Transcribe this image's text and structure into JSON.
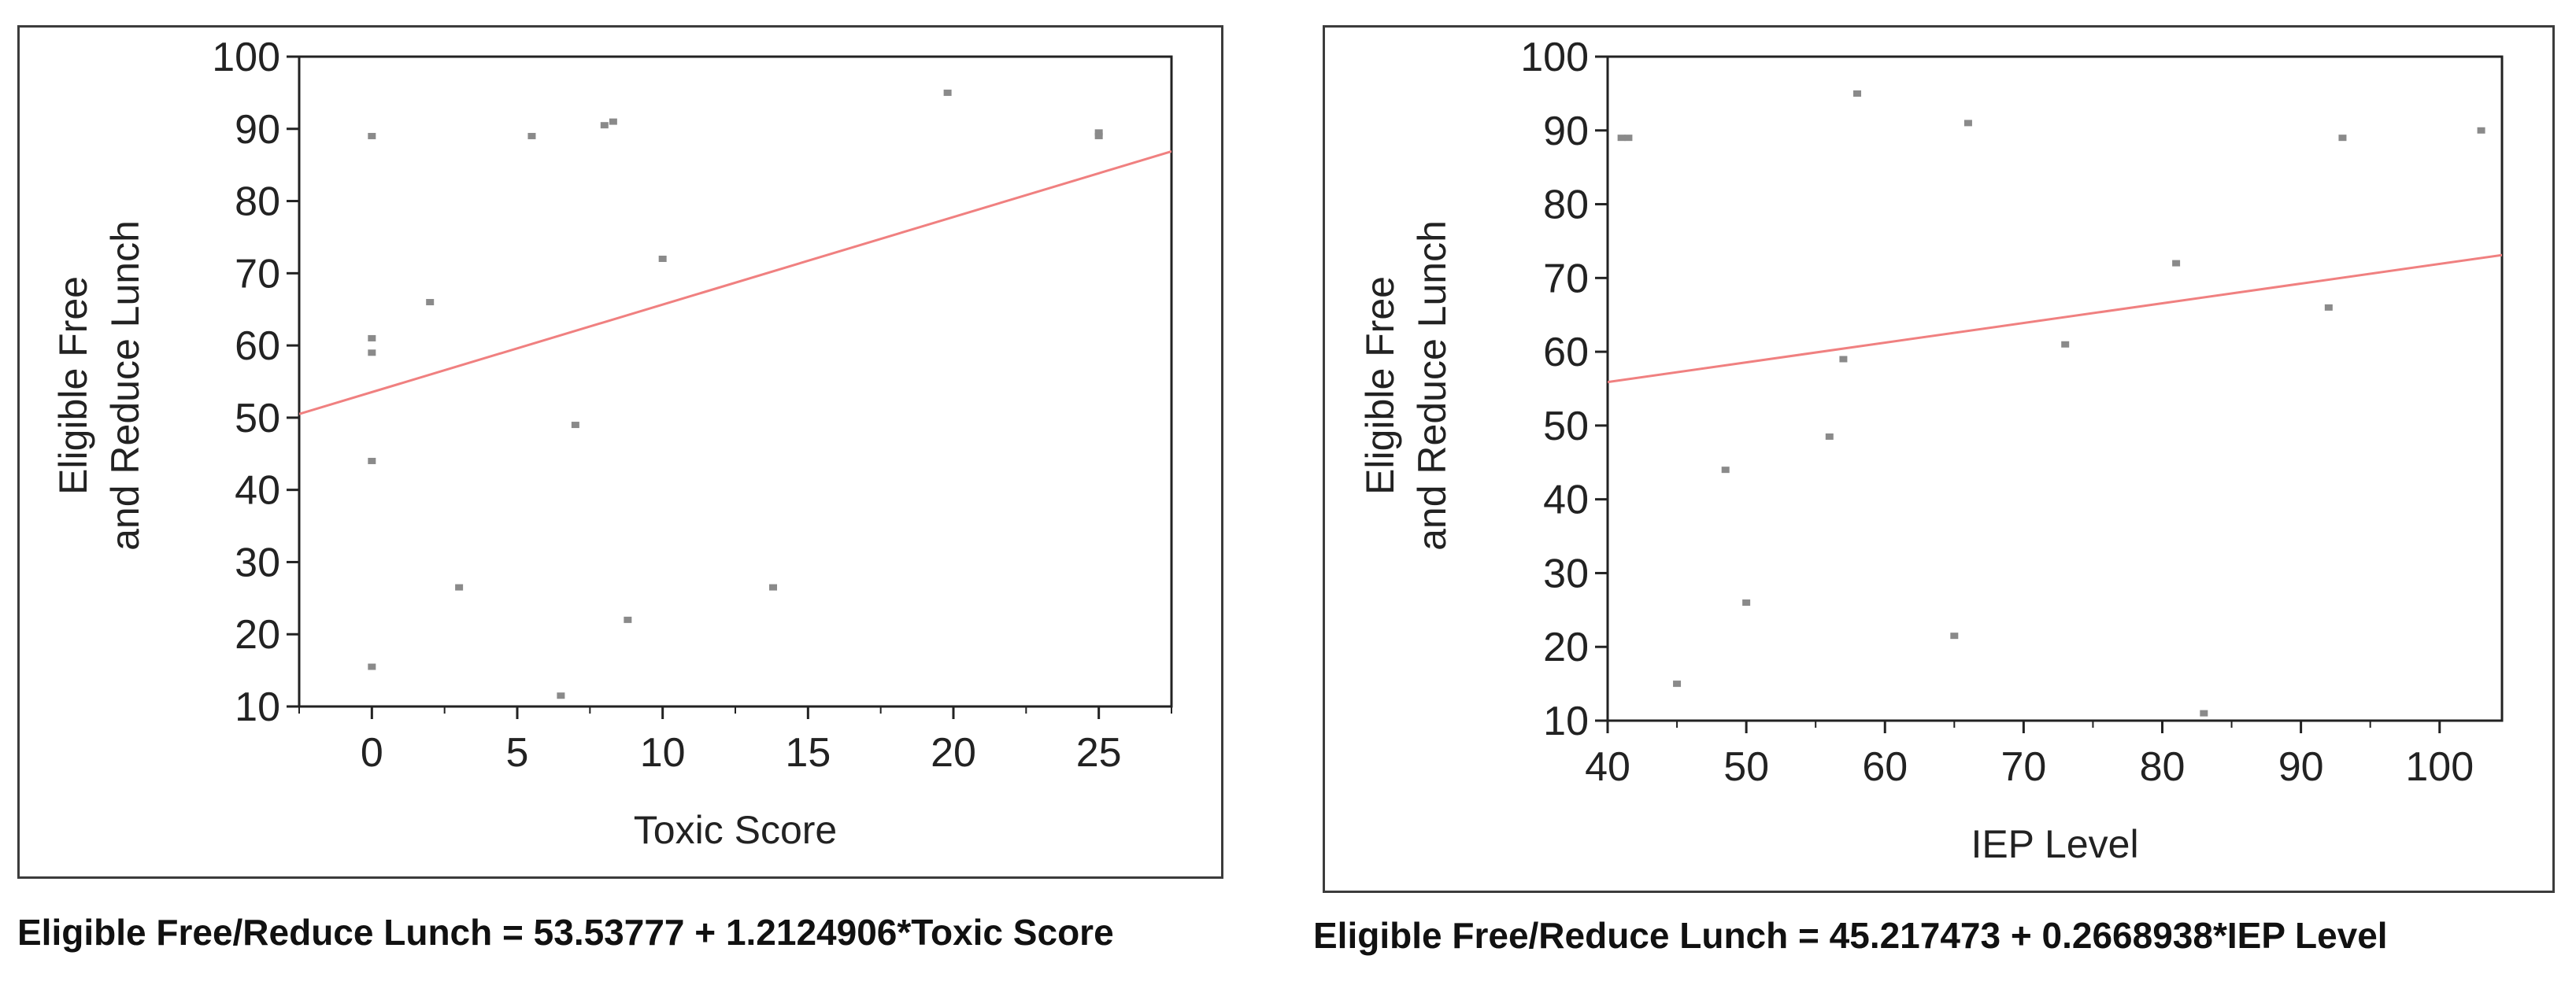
{
  "chart_data": [
    {
      "type": "scatter",
      "xlabel": "Toxic Score",
      "ylabel": [
        "Eligible Free",
        "and Reduce Lunch"
      ],
      "equation": "Eligible Free/Reduce Lunch = 53.53777 + 1.2124906*Toxic Score",
      "xlim": [
        -2.5,
        27.5
      ],
      "ylim": [
        10,
        100
      ],
      "x_ticks": [
        0,
        5,
        10,
        15,
        20,
        25
      ],
      "y_ticks": [
        10,
        20,
        30,
        40,
        50,
        60,
        70,
        80,
        90,
        100
      ],
      "points": [
        {
          "x": 0,
          "y": 89
        },
        {
          "x": 0,
          "y": 61
        },
        {
          "x": 0,
          "y": 59
        },
        {
          "x": 0,
          "y": 44
        },
        {
          "x": 0,
          "y": 15.5
        },
        {
          "x": 2,
          "y": 66
        },
        {
          "x": 3,
          "y": 26.5
        },
        {
          "x": 5.5,
          "y": 89
        },
        {
          "x": 6.5,
          "y": 11.5
        },
        {
          "x": 7,
          "y": 49
        },
        {
          "x": 8,
          "y": 90.5
        },
        {
          "x": 8.3,
          "y": 91
        },
        {
          "x": 8.8,
          "y": 22
        },
        {
          "x": 10,
          "y": 72
        },
        {
          "x": 13.8,
          "y": 26.5
        },
        {
          "x": 19.8,
          "y": 95
        },
        {
          "x": 25,
          "y": 89
        },
        {
          "x": 25,
          "y": 89.5
        }
      ],
      "fit": {
        "intercept": 53.53777,
        "slope": 1.2124906
      },
      "colors": {
        "points": "#8a8a8a",
        "fit": "#f08080",
        "axis": "#222222",
        "frame": "#3c3c3c"
      }
    },
    {
      "type": "scatter",
      "xlabel": "IEP Level",
      "ylabel": [
        "Eligible Free",
        "and Reduce Lunch"
      ],
      "equation": "Eligible Free/Reduce Lunch = 45.217473 + 0.2668938*IEP Level",
      "xlim": [
        40,
        104.5
      ],
      "ylim": [
        10,
        100
      ],
      "x_ticks": [
        40,
        50,
        60,
        70,
        80,
        90,
        100
      ],
      "y_ticks": [
        10,
        20,
        30,
        40,
        50,
        60,
        70,
        80,
        90,
        100
      ],
      "points": [
        {
          "x": 41,
          "y": 89
        },
        {
          "x": 41.5,
          "y": 89
        },
        {
          "x": 45,
          "y": 15
        },
        {
          "x": 48.5,
          "y": 44
        },
        {
          "x": 50,
          "y": 26
        },
        {
          "x": 56,
          "y": 48.5
        },
        {
          "x": 57,
          "y": 59
        },
        {
          "x": 58,
          "y": 95
        },
        {
          "x": 65,
          "y": 21.5
        },
        {
          "x": 66,
          "y": 91
        },
        {
          "x": 73,
          "y": 61
        },
        {
          "x": 81,
          "y": 72
        },
        {
          "x": 83,
          "y": 11
        },
        {
          "x": 92,
          "y": 66
        },
        {
          "x": 93,
          "y": 89
        },
        {
          "x": 103,
          "y": 90
        }
      ],
      "fit": {
        "intercept": 45.217473,
        "slope": 0.2668938
      },
      "colors": {
        "points": "#8a8a8a",
        "fit": "#f08080",
        "axis": "#222222",
        "frame": "#3c3c3c"
      }
    }
  ]
}
